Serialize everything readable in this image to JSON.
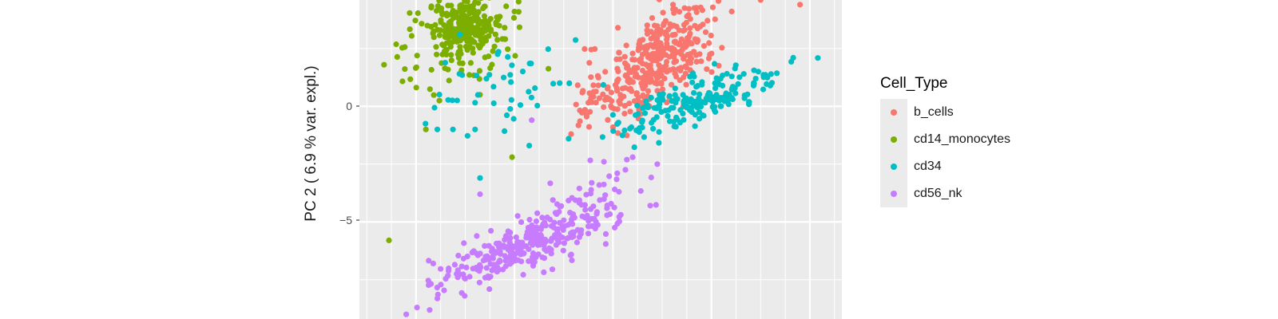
{
  "chart_data": {
    "type": "scatter",
    "title": "",
    "xlabel": "",
    "ylabel": "PC 2 ( 6.9 % var. expl.)",
    "xlim": [
      -8.3,
      11.3
    ],
    "ylim": [
      -9.2,
      4.6
    ],
    "y_ticks": [
      0,
      -5
    ],
    "y_tick_labels": [
      "0",
      "−5"
    ],
    "x_major_gridlines": [
      -6,
      -2,
      2,
      6,
      10
    ],
    "background": "#ebebeb",
    "grid": true,
    "legend": {
      "title": "Cell_Type",
      "placement": "right",
      "entries": [
        "b_cells",
        "cd14_monocytes",
        "cd34",
        "cd56_nk"
      ]
    },
    "series": [
      {
        "name": "b_cells",
        "color": "#f8766d",
        "clusters": [
          {
            "n": 360,
            "cx": 3.9,
            "cy": 2.1,
            "sx": 1.15,
            "sy": 1.2,
            "rho": 0.55
          },
          {
            "n": 40,
            "cx": 1.6,
            "cy": 0.6,
            "sx": 0.7,
            "sy": 0.8,
            "rho": 0.3
          }
        ],
        "points": [
          [
            9.6,
            4.4
          ],
          [
            8.0,
            4.6
          ],
          [
            0.3,
            -1.2
          ],
          [
            2.2,
            3.4
          ]
        ]
      },
      {
        "name": "cd14_monocytes",
        "color": "#7cae00",
        "clusters": [
          {
            "n": 230,
            "cx": -4.0,
            "cy": 3.5,
            "sx": 0.75,
            "sy": 0.6,
            "rho": 0.25
          },
          {
            "n": 70,
            "cx": -4.1,
            "cy": 2.4,
            "sx": 1.5,
            "sy": 1.1,
            "rho": 0.2
          }
        ],
        "points": [
          [
            -7.1,
            -5.8
          ],
          [
            -5.6,
            -1.0
          ],
          [
            -2.1,
            -2.2
          ],
          [
            -7.3,
            1.8
          ],
          [
            -2.0,
            4.1
          ]
        ]
      },
      {
        "name": "cd34",
        "color": "#00bfc4",
        "clusters": [
          {
            "n": 190,
            "cx": 5.5,
            "cy": 0.3,
            "sx": 1.7,
            "sy": 0.75,
            "rho": 0.78
          },
          {
            "n": 45,
            "cx": -2.3,
            "cy": 0.8,
            "sx": 1.5,
            "sy": 1.0,
            "rho": 0.1
          }
        ],
        "points": [
          [
            -3.4,
            -3.1
          ],
          [
            -3.6,
            -1.0
          ],
          [
            -4.5,
            -1.0
          ],
          [
            0.2,
            -1.4
          ],
          [
            -1.4,
            -1.7
          ]
        ]
      },
      {
        "name": "cd56_nk",
        "color": "#c77cff",
        "clusters": [
          {
            "n": 300,
            "cx": -1.5,
            "cy": -6.0,
            "sx": 1.8,
            "sy": 0.9,
            "rho": 0.8
          },
          {
            "n": 30,
            "cx": 1.2,
            "cy": -3.8,
            "sx": 0.9,
            "sy": 0.7,
            "rho": 0.4
          }
        ],
        "points": [
          [
            -6.4,
            -9.0
          ],
          [
            -5.3,
            -6.8
          ],
          [
            -3.4,
            -3.8
          ],
          [
            3.8,
            -2.5
          ],
          [
            -1.3,
            -0.6
          ],
          [
            2.8,
            -2.2
          ]
        ]
      }
    ]
  }
}
